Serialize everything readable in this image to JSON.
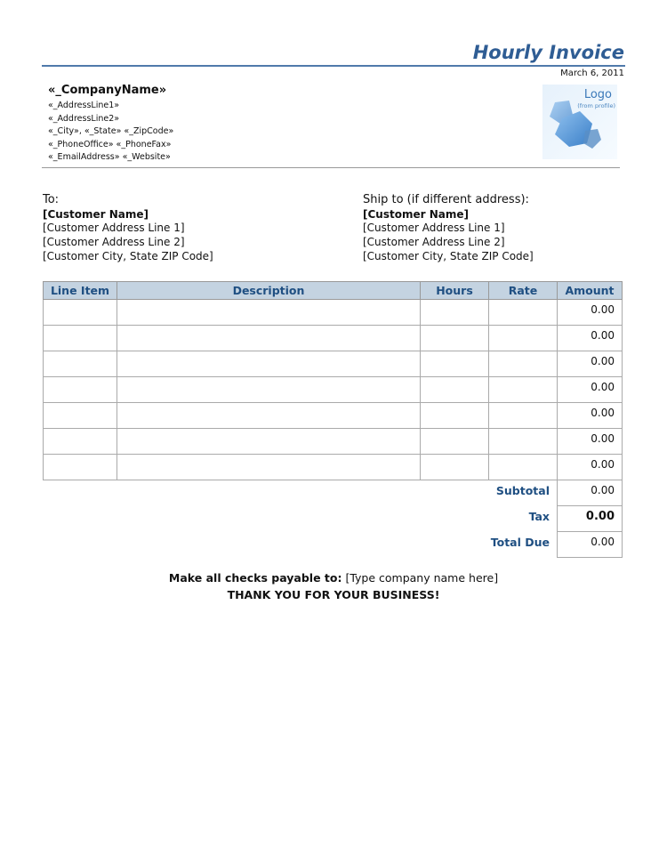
{
  "header": {
    "title": "Hourly Invoice",
    "date": "March 6, 2011"
  },
  "company": {
    "name": "«_CompanyName»",
    "lines": [
      "«_AddressLine1»",
      "«_AddressLine2»",
      "«_City», «_State» «_ZipCode»",
      "«_PhoneOffice» «_PhoneFax»",
      "«_EmailAddress» «_Website»"
    ]
  },
  "logo": {
    "title": "Logo",
    "subtitle": "(from profile)"
  },
  "bill_to": {
    "label": "To:",
    "name": "[Customer Name]",
    "line1": "[Customer Address Line 1]",
    "line2": "[Customer Address Line 2]",
    "city": "[Customer City, State ZIP Code]"
  },
  "ship_to": {
    "label": "Ship to (if different address):",
    "name": "[Customer Name]",
    "line1": "[Customer Address Line 1]",
    "line2": "[Customer Address Line 2]",
    "city": "[Customer City, State ZIP Code]"
  },
  "table": {
    "headers": [
      "Line Item",
      "Description",
      "Hours",
      "Rate",
      "Amount"
    ],
    "rows": [
      {
        "amount": "0.00"
      },
      {
        "amount": "0.00"
      },
      {
        "amount": "0.00"
      },
      {
        "amount": "0.00"
      },
      {
        "amount": "0.00"
      },
      {
        "amount": "0.00"
      },
      {
        "amount": "0.00"
      }
    ]
  },
  "totals": {
    "subtotal_label": "Subtotal",
    "subtotal": "0.00",
    "tax_label": "Tax",
    "tax": "0.00",
    "total_label": "Total Due",
    "total": "0.00"
  },
  "footer": {
    "checks_label": "Make all checks payable to:",
    "checks_value": "[Type company name here]",
    "thanks": "THANK YOU FOR YOUR BUSINESS!"
  },
  "colors": {
    "accent": "#2f5d94",
    "header_fill": "#c4d3e1"
  }
}
